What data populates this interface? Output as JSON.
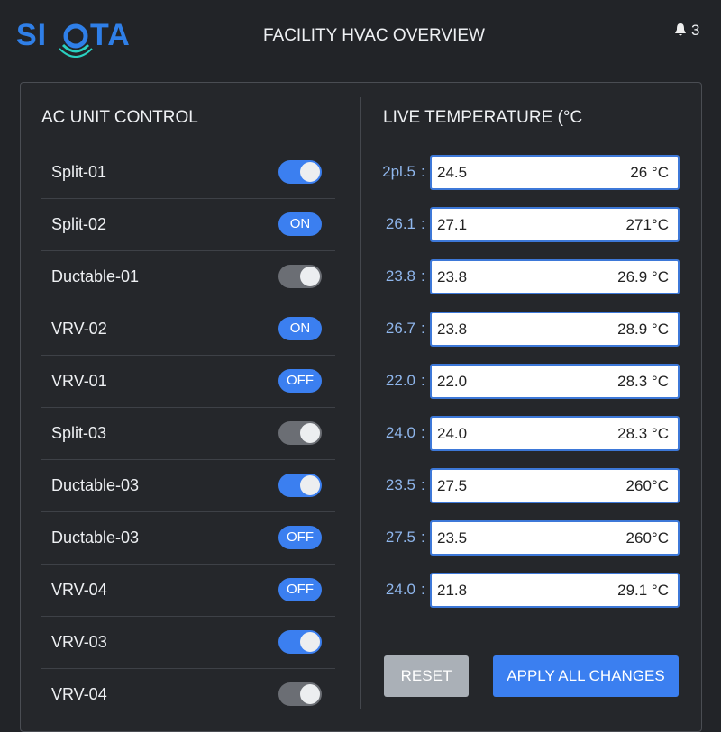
{
  "header": {
    "logo_left": "SI",
    "logo_right": "TA",
    "title": "FACILITY HVAC OVERVIEW",
    "notifications": 3
  },
  "ac_control": {
    "title": "AC UNIT CONTROL",
    "units": [
      {
        "name": "Split-01",
        "state": "on"
      },
      {
        "name": "Split-02",
        "state": "on",
        "label": "ON"
      },
      {
        "name": "Ductable-01",
        "state": "off"
      },
      {
        "name": "VRV-02",
        "state": "on",
        "label": "ON"
      },
      {
        "name": "VRV-01",
        "state": "on",
        "label": "OFF"
      },
      {
        "name": "Split-03",
        "state": "off"
      },
      {
        "name": "Ductable-03",
        "state": "on"
      },
      {
        "name": "Ductable-03",
        "state": "on",
        "label": "OFF"
      },
      {
        "name": "VRV-04",
        "state": "on",
        "label": "OFF"
      },
      {
        "name": "VRV-03",
        "state": "on"
      },
      {
        "name": "VRV-04",
        "state": "off"
      }
    ]
  },
  "live_temperature": {
    "title": "LIVE TEMPERATURE (°C",
    "separator": ":",
    "rows": [
      {
        "label": "2pl.5",
        "input": "24.5",
        "reading": "26  °C"
      },
      {
        "label": "26.1",
        "input": "27.1",
        "reading": "271°C"
      },
      {
        "label": "23.8",
        "input": "23.8",
        "reading": "26.9 °C"
      },
      {
        "label": "26.7",
        "input": "23.8",
        "reading": "28.9 °C"
      },
      {
        "label": "22.0",
        "input": "22.0",
        "reading": "28.3 °C"
      },
      {
        "label": "24.0",
        "input": "24.0",
        "reading": "28.3 °C"
      },
      {
        "label": "23.5",
        "input": "27.5",
        "reading": "260°C"
      },
      {
        "label": "27.5",
        "input": "23.5",
        "reading": "260°C"
      },
      {
        "label": "24.0",
        "input": "21.8",
        "reading": "29.1 °C"
      }
    ]
  },
  "buttons": {
    "reset": "RESET",
    "apply": "APPLY ALL CHANGES"
  }
}
